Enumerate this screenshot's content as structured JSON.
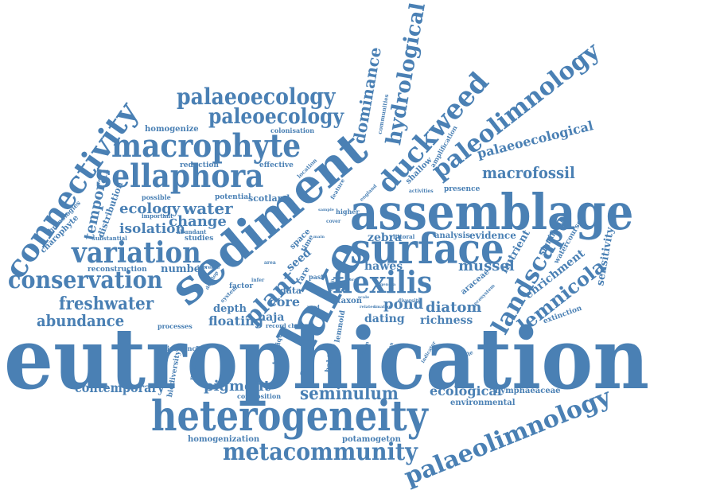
{
  "color": "#4a80b4",
  "words": [
    {
      "text": "eutrophication"
    },
    {
      "text": "assemblage"
    },
    {
      "text": "heterogeneity"
    },
    {
      "text": "lake"
    },
    {
      "text": "sediment"
    },
    {
      "text": "surface"
    },
    {
      "text": "macrophyte"
    },
    {
      "text": "sellaphora"
    },
    {
      "text": "connectivity"
    },
    {
      "text": "variation"
    },
    {
      "text": "conservation"
    },
    {
      "text": "flexilis"
    },
    {
      "text": "metacommunity"
    },
    {
      "text": "palaeolimnology"
    },
    {
      "text": "palaeoecology"
    },
    {
      "text": "paleoecology"
    },
    {
      "text": "paleolimnology"
    },
    {
      "text": "duckweed"
    },
    {
      "text": "hydrological"
    },
    {
      "text": "dominance"
    },
    {
      "text": "landscape"
    },
    {
      "text": "lemnicola"
    },
    {
      "text": "freshwater"
    },
    {
      "text": "abundance"
    },
    {
      "text": "contemporary"
    },
    {
      "text": "seminulum"
    },
    {
      "text": "plant"
    },
    {
      "text": "palaeoecological"
    },
    {
      "text": "macrofossil"
    },
    {
      "text": "ecology"
    },
    {
      "text": "water"
    },
    {
      "text": "change"
    },
    {
      "text": "isolation"
    },
    {
      "text": "temporal"
    },
    {
      "text": "diatom"
    },
    {
      "text": "pond"
    },
    {
      "text": "mussel"
    },
    {
      "text": "zebra"
    },
    {
      "text": "hawes"
    },
    {
      "text": "ecological"
    },
    {
      "text": "pigment"
    },
    {
      "text": "floating"
    },
    {
      "text": "core"
    },
    {
      "text": "richness"
    },
    {
      "text": "dating"
    },
    {
      "text": "nutrient"
    },
    {
      "text": "enrichment"
    },
    {
      "text": "sensitivity"
    },
    {
      "text": "spatial"
    },
    {
      "text": "seed"
    },
    {
      "text": "evidence"
    },
    {
      "text": "naja"
    },
    {
      "text": "depth"
    },
    {
      "text": "number"
    },
    {
      "text": "homogenize"
    },
    {
      "text": "homogenization"
    },
    {
      "text": "nymphaeaceae"
    },
    {
      "text": "environmental"
    },
    {
      "text": "potamogeton"
    },
    {
      "text": "araceae"
    },
    {
      "text": "reconstruction"
    },
    {
      "text": "charophyte"
    },
    {
      "text": "distribution"
    },
    {
      "text": "chronologies"
    },
    {
      "text": "scotland"
    },
    {
      "text": "potential"
    },
    {
      "text": "reduction"
    },
    {
      "text": "effective"
    },
    {
      "text": "colonisation"
    },
    {
      "text": "presence"
    },
    {
      "text": "analysis"
    },
    {
      "text": "extinction"
    },
    {
      "text": "significant"
    },
    {
      "text": "watercourse"
    },
    {
      "text": "biodiversity"
    },
    {
      "text": "maximum"
    },
    {
      "text": "influence"
    },
    {
      "text": "processes"
    },
    {
      "text": "composition"
    },
    {
      "text": "technique"
    },
    {
      "text": "habitat"
    },
    {
      "text": "lemnoid"
    },
    {
      "text": "taxon"
    },
    {
      "text": "data"
    },
    {
      "text": "factor"
    },
    {
      "text": "studies"
    },
    {
      "text": "abundant"
    },
    {
      "text": "important"
    },
    {
      "text": "possible"
    },
    {
      "text": "substantial"
    },
    {
      "text": "shallow"
    },
    {
      "text": "amplification"
    },
    {
      "text": "communities"
    },
    {
      "text": "location"
    },
    {
      "text": "feature"
    },
    {
      "text": "england"
    },
    {
      "text": "activities"
    },
    {
      "text": "higher"
    },
    {
      "text": "sample"
    },
    {
      "text": "space"
    },
    {
      "text": "rare"
    },
    {
      "text": "time"
    },
    {
      "text": "past"
    },
    {
      "text": "littoral"
    },
    {
      "text": "reliable"
    },
    {
      "text": "ecosystem"
    },
    {
      "text": "diversity"
    },
    {
      "text": "mission"
    },
    {
      "text": "indicator"
    },
    {
      "text": "addition"
    },
    {
      "text": "record"
    },
    {
      "text": "charon"
    },
    {
      "text": "system"
    },
    {
      "text": "increase"
    },
    {
      "text": "develop"
    },
    {
      "text": "area"
    },
    {
      "text": "infer"
    },
    {
      "text": "main"
    },
    {
      "text": "cover"
    },
    {
      "text": "used"
    },
    {
      "text": "scale"
    },
    {
      "text": "related"
    },
    {
      "text": "smaller"
    },
    {
      "text": "genera"
    },
    {
      "text": "result"
    },
    {
      "text": "more"
    }
  ]
}
